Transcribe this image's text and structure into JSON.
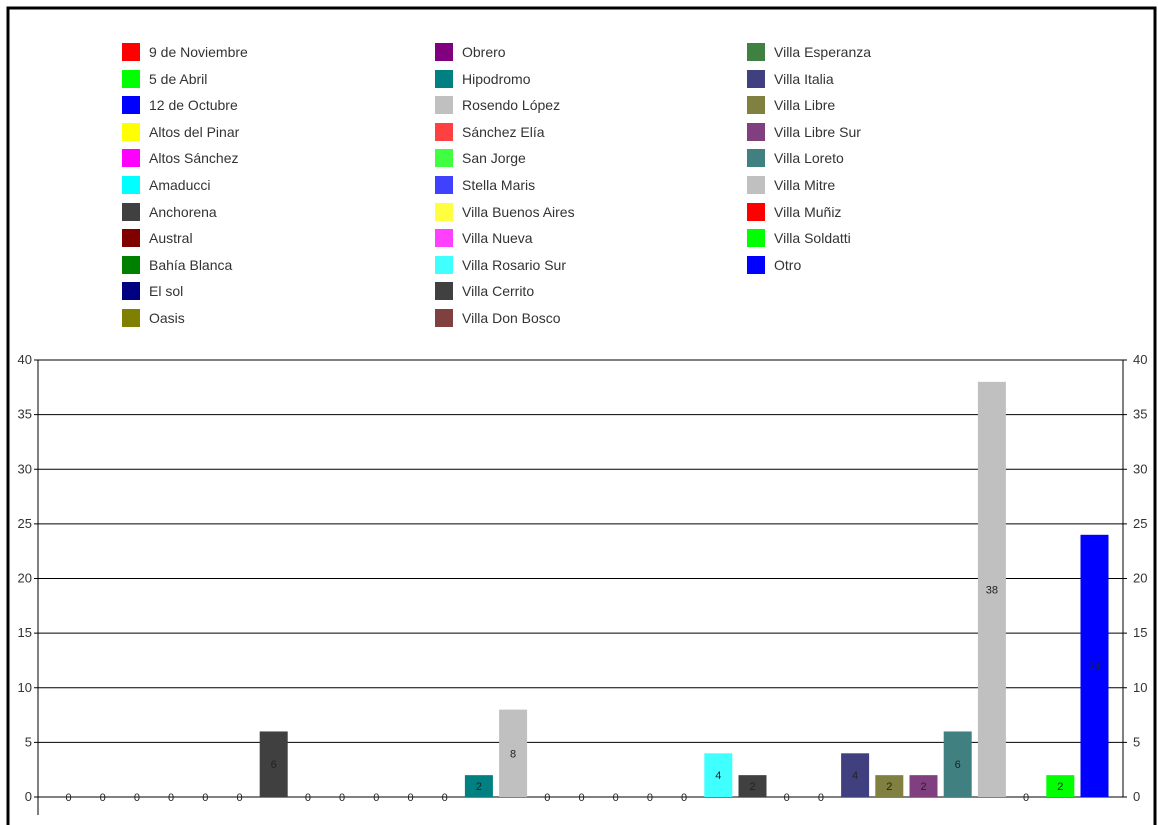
{
  "chart_data": {
    "type": "bar",
    "title": "",
    "xlabel": "",
    "ylabel": "",
    "ylim": [
      0,
      40
    ],
    "yticks": [
      0,
      5,
      10,
      15,
      20,
      25,
      30,
      35,
      40
    ],
    "grid": true,
    "legend_position": "top",
    "categories": [
      "9 de Noviembre",
      "5 de Abril",
      "12 de Octubre",
      "Altos del Pinar",
      "Altos Sánchez",
      "Amaducci",
      "Anchorena",
      "Austral",
      "Bahía Blanca",
      "El sol",
      "Oasis",
      "Obrero",
      "Hipodromo",
      "Rosendo López",
      "Sánchez Elía",
      "San Jorge",
      "Stella Maris",
      "Villa Buenos Aires",
      "Villa Nueva",
      "Villa Rosario Sur",
      "Villa Cerrito",
      "Villa Don Bosco",
      "Villa Esperanza",
      "Villa Italia",
      "Villa Libre",
      "Villa Libre Sur",
      "Villa Loreto",
      "Villa Mitre",
      "Villa Muñiz",
      "Villa Soldatti",
      "Otro"
    ],
    "values": [
      0,
      0,
      0,
      0,
      0,
      0,
      6,
      0,
      0,
      0,
      0,
      0,
      2,
      8,
      0,
      0,
      0,
      0,
      0,
      4,
      2,
      0,
      0,
      4,
      2,
      2,
      6,
      38,
      0,
      2,
      24
    ],
    "colors": [
      "#ff0000",
      "#00ff00",
      "#0000ff",
      "#ffff00",
      "#ff00ff",
      "#00ffff",
      "#404040",
      "#800000",
      "#008000",
      "#000080",
      "#808000",
      "#800080",
      "#008080",
      "#c0c0c0",
      "#ff4040",
      "#40ff40",
      "#4040ff",
      "#ffff40",
      "#ff40ff",
      "#40ffff",
      "#404040",
      "#804040",
      "#408040",
      "#404080",
      "#808040",
      "#804080",
      "#408080",
      "#c0c0c0",
      "#ff0000",
      "#00ff00",
      "#0000ff"
    ]
  }
}
